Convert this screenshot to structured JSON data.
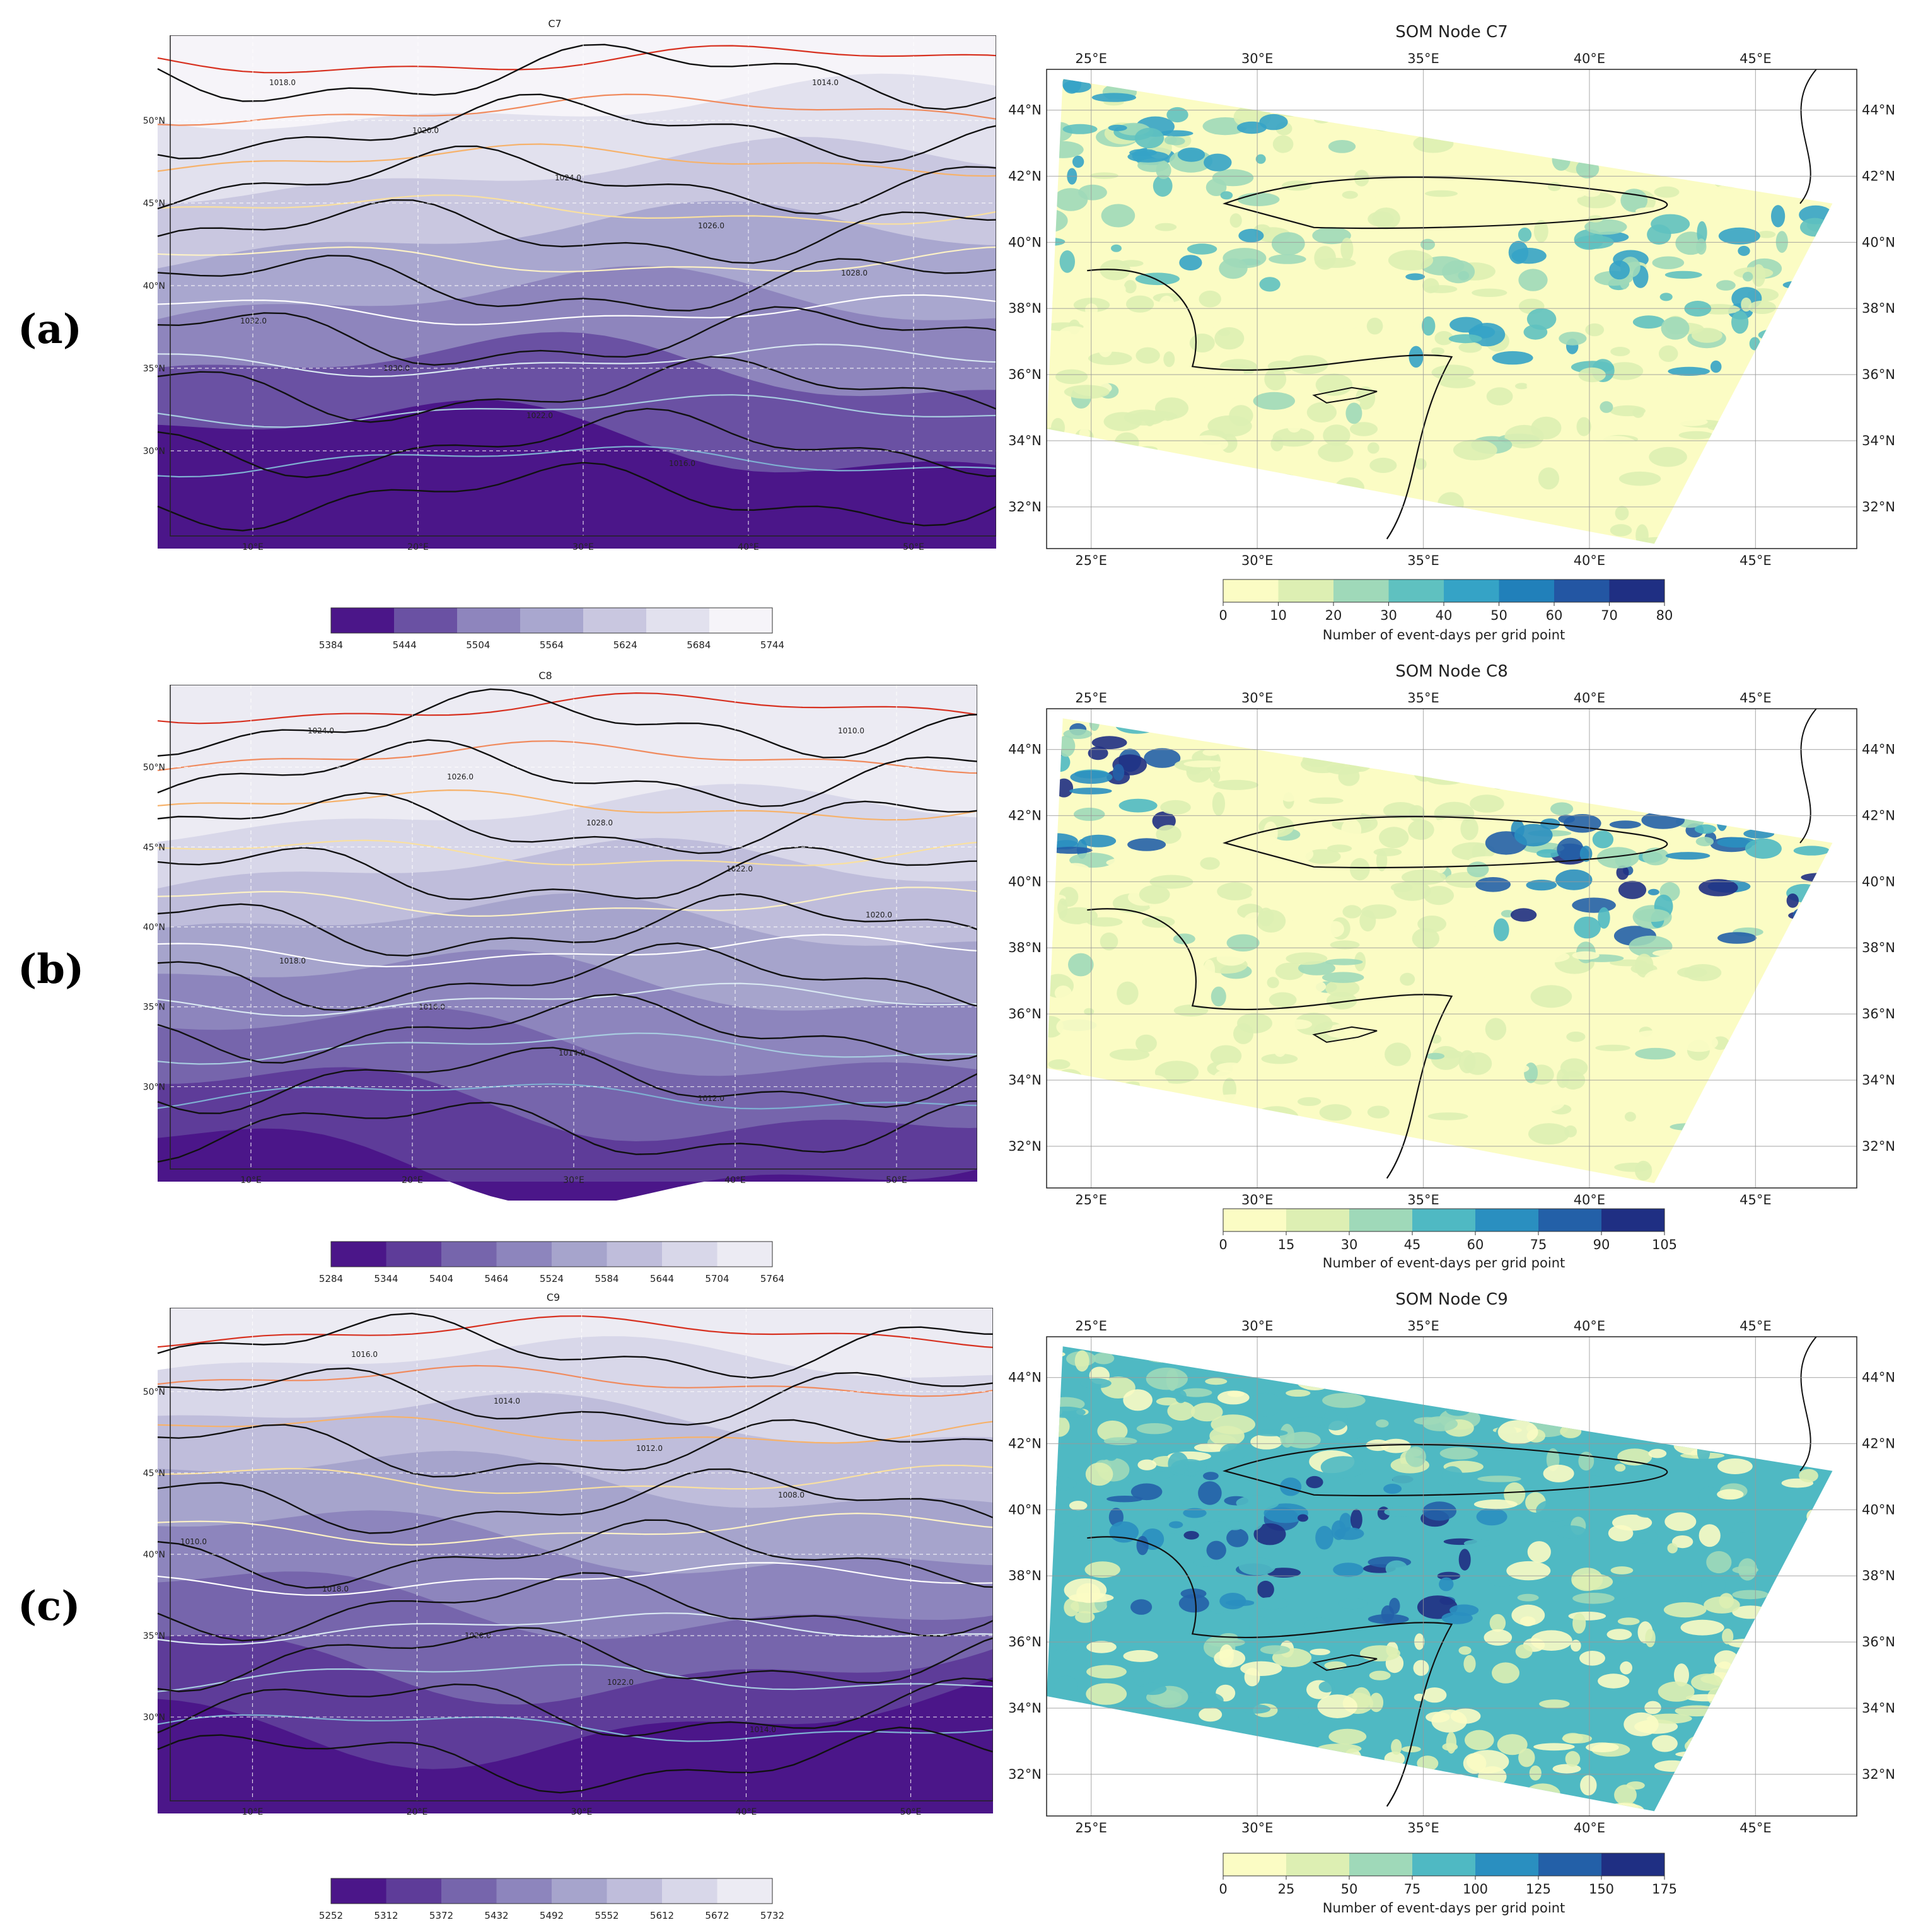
{
  "row_labels": [
    "(a)",
    "(b)",
    "(c)"
  ],
  "rows": [
    {
      "left": {
        "title": "C7",
        "lat_ticks": [
          "50°N",
          "45°N",
          "40°N",
          "35°N",
          "30°N"
        ],
        "lon_ticks": [
          "10°E",
          "20°E",
          "30°E",
          "40°E",
          "50°E"
        ],
        "isobar_labels": [
          "1018.0",
          "1020.0",
          "1024.0",
          "1026.0",
          "1028.0",
          "1032.0",
          "1030.0",
          "1022.0",
          "1016.0",
          "1014.0"
        ],
        "colorbar_ticks": [
          "5384",
          "5444",
          "5504",
          "5564",
          "5624",
          "5684",
          "5744"
        ],
        "colorbar_colors": [
          "#4b1689",
          "#6a51a3",
          "#8e85bd",
          "#a9a7cf",
          "#c9c7e0",
          "#e2e1ee",
          "#f6f4f9"
        ]
      },
      "right": {
        "title": "SOM Node C7",
        "lat_ticks": [
          "44°N",
          "42°N",
          "40°N",
          "38°N",
          "36°N",
          "34°N",
          "32°N"
        ],
        "lon_ticks": [
          "25°E",
          "30°E",
          "35°E",
          "40°E",
          "45°E"
        ],
        "colorbar_ticks": [
          "0",
          "10",
          "20",
          "30",
          "40",
          "50",
          "60",
          "70",
          "80"
        ],
        "colorbar_colors": [
          "#fbfcc4",
          "#ddefb3",
          "#9fd9b9",
          "#5fc1c0",
          "#35a3c6",
          "#2180ba",
          "#2356a3",
          "#1f2f83"
        ],
        "colorbar_label": "Number of event-days per grid point",
        "dominant": "low"
      }
    },
    {
      "left": {
        "title": "C8",
        "lat_ticks": [
          "50°N",
          "45°N",
          "40°N",
          "35°N",
          "30°N"
        ],
        "lon_ticks": [
          "10°E",
          "20°E",
          "30°E",
          "40°E",
          "50°E"
        ],
        "isobar_labels": [
          "1024.0",
          "1026.0",
          "1028.0",
          "1022.0",
          "1020.0",
          "1018.0",
          "1016.0",
          "1014.0",
          "1012.0",
          "1010.0"
        ],
        "colorbar_ticks": [
          "5284",
          "5344",
          "5404",
          "5464",
          "5524",
          "5584",
          "5644",
          "5704",
          "5764"
        ],
        "colorbar_colors": [
          "#4b1689",
          "#5e3c99",
          "#7665ac",
          "#8d85bd",
          "#a6a4cc",
          "#bfbddb",
          "#d8d7e9",
          "#ecebf3"
        ]
      },
      "right": {
        "title": "SOM Node C8",
        "lat_ticks": [
          "44°N",
          "42°N",
          "40°N",
          "38°N",
          "36°N",
          "34°N",
          "32°N"
        ],
        "lon_ticks": [
          "25°E",
          "30°E",
          "35°E",
          "40°E",
          "45°E"
        ],
        "colorbar_ticks": [
          "0",
          "15",
          "30",
          "45",
          "60",
          "75",
          "90",
          "105"
        ],
        "colorbar_colors": [
          "#fbfcc4",
          "#ddefb3",
          "#9fd9b9",
          "#4fb9c3",
          "#2a8fc0",
          "#2360a8",
          "#1f2f83"
        ],
        "colorbar_label": "Number of event-days per grid point",
        "dominant": "mixed"
      }
    },
    {
      "left": {
        "title": "C9",
        "lat_ticks": [
          "50°N",
          "45°N",
          "40°N",
          "35°N",
          "30°N"
        ],
        "lon_ticks": [
          "10°E",
          "20°E",
          "30°E",
          "40°E",
          "50°E"
        ],
        "isobar_labels": [
          "1016.0",
          "1014.0",
          "1012.0",
          "1008.0",
          "1010.0",
          "1018.0",
          "1020.0",
          "1022.0",
          "1014.0"
        ],
        "colorbar_ticks": [
          "5252",
          "5312",
          "5372",
          "5432",
          "5492",
          "5552",
          "5612",
          "5672",
          "5732"
        ],
        "colorbar_colors": [
          "#4b1689",
          "#5e3c99",
          "#7665ac",
          "#8d85bd",
          "#a6a4cc",
          "#bfbddb",
          "#d8d7e9",
          "#ecebf3"
        ]
      },
      "right": {
        "title": "SOM Node C9",
        "lat_ticks": [
          "44°N",
          "42°N",
          "40°N",
          "38°N",
          "36°N",
          "34°N",
          "32°N"
        ],
        "lon_ticks": [
          "25°E",
          "30°E",
          "35°E",
          "40°E",
          "45°E"
        ],
        "colorbar_ticks": [
          "0",
          "25",
          "50",
          "75",
          "100",
          "125",
          "150",
          "175"
        ],
        "colorbar_colors": [
          "#fbfcc4",
          "#ddefb3",
          "#9fd9b9",
          "#4fb9c3",
          "#2a8fc0",
          "#2360a8",
          "#1f2f83"
        ],
        "colorbar_label": "Number of event-days per grid point",
        "dominant": "high"
      }
    }
  ]
}
